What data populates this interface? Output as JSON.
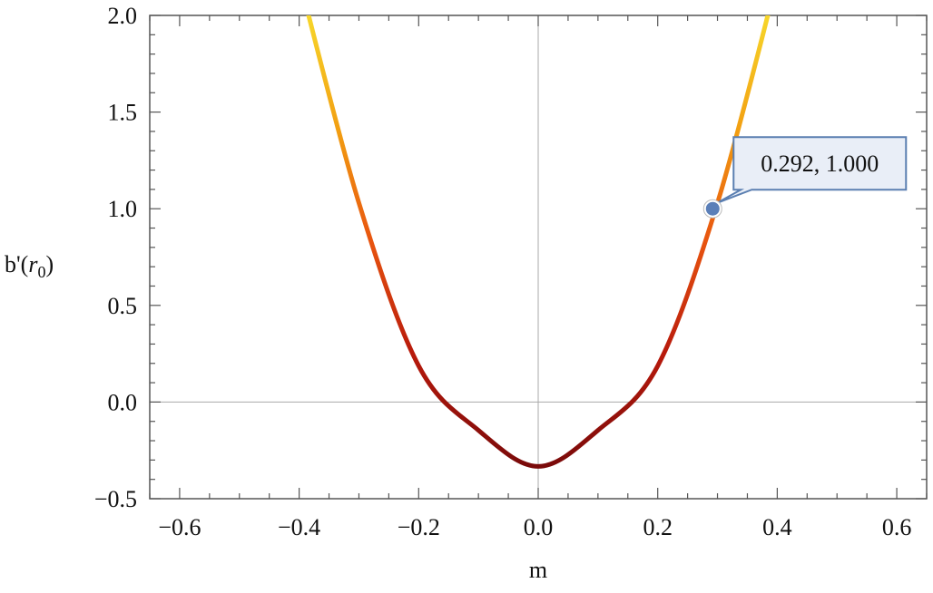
{
  "chart_data": {
    "type": "line",
    "xlabel": "m",
    "ylabel": {
      "prefix": "b'(",
      "var": "r",
      "sub": "0",
      "suffix": ")"
    },
    "xlim": [
      -0.65,
      0.65
    ],
    "ylim": [
      -0.5,
      2.0
    ],
    "x_ticks": [
      -0.6,
      -0.4,
      -0.2,
      0.0,
      0.2,
      0.4,
      0.6
    ],
    "x_tick_labels": [
      "−0.6",
      "−0.4",
      "−0.2",
      "0.0",
      "0.2",
      "0.4",
      "0.6"
    ],
    "y_ticks": [
      -0.5,
      0.0,
      0.5,
      1.0,
      1.5,
      2.0
    ],
    "y_tick_labels": [
      "−0.5",
      "0.0",
      "0.5",
      "1.0",
      "1.5",
      "2.0"
    ],
    "series": [
      {
        "x": [
          -0.4,
          -0.3,
          -0.2,
          -0.1,
          0.0,
          0.1,
          0.2,
          0.3,
          0.4
        ],
        "y": [
          2.19,
          1.03,
          0.187,
          -0.146,
          -0.333,
          -0.146,
          0.187,
          1.03,
          2.19
        ]
      }
    ],
    "color_gradient": [
      "#7a0a0a",
      "#b81a0c",
      "#e8540f",
      "#f2a012",
      "#f7d62a"
    ],
    "grid": false,
    "annotations": [
      {
        "x": 0.292,
        "y": 1.0,
        "label": "0.292, 1.000"
      }
    ]
  }
}
